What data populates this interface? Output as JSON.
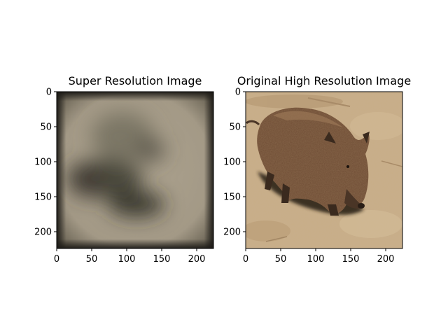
{
  "chart_data": [
    {
      "type": "image",
      "title": "Super Resolution Image",
      "image_content": "blurred-boar",
      "xlim": [
        0,
        224
      ],
      "ylim": [
        224,
        0
      ],
      "xticks": [
        0,
        50,
        100,
        150,
        200
      ],
      "yticks": [
        0,
        50,
        100,
        150,
        200
      ],
      "xlabel": "",
      "ylabel": "",
      "grid": false
    },
    {
      "type": "image",
      "title": "Original High Resolution Image",
      "image_content": "wild-boar-photo",
      "xlim": [
        0,
        224
      ],
      "ylim": [
        224,
        0
      ],
      "xticks": [
        0,
        50,
        100,
        150,
        200
      ],
      "yticks": [
        0,
        50,
        100,
        150,
        200
      ],
      "xlabel": "",
      "ylabel": "",
      "grid": false
    }
  ],
  "colors": {
    "sr_background": "#a89e8a",
    "sr_blob": "#3a3830",
    "orig_ground": "#c8ad86",
    "orig_boar": "#6b4a32",
    "orig_shadow": "#2e241c"
  }
}
